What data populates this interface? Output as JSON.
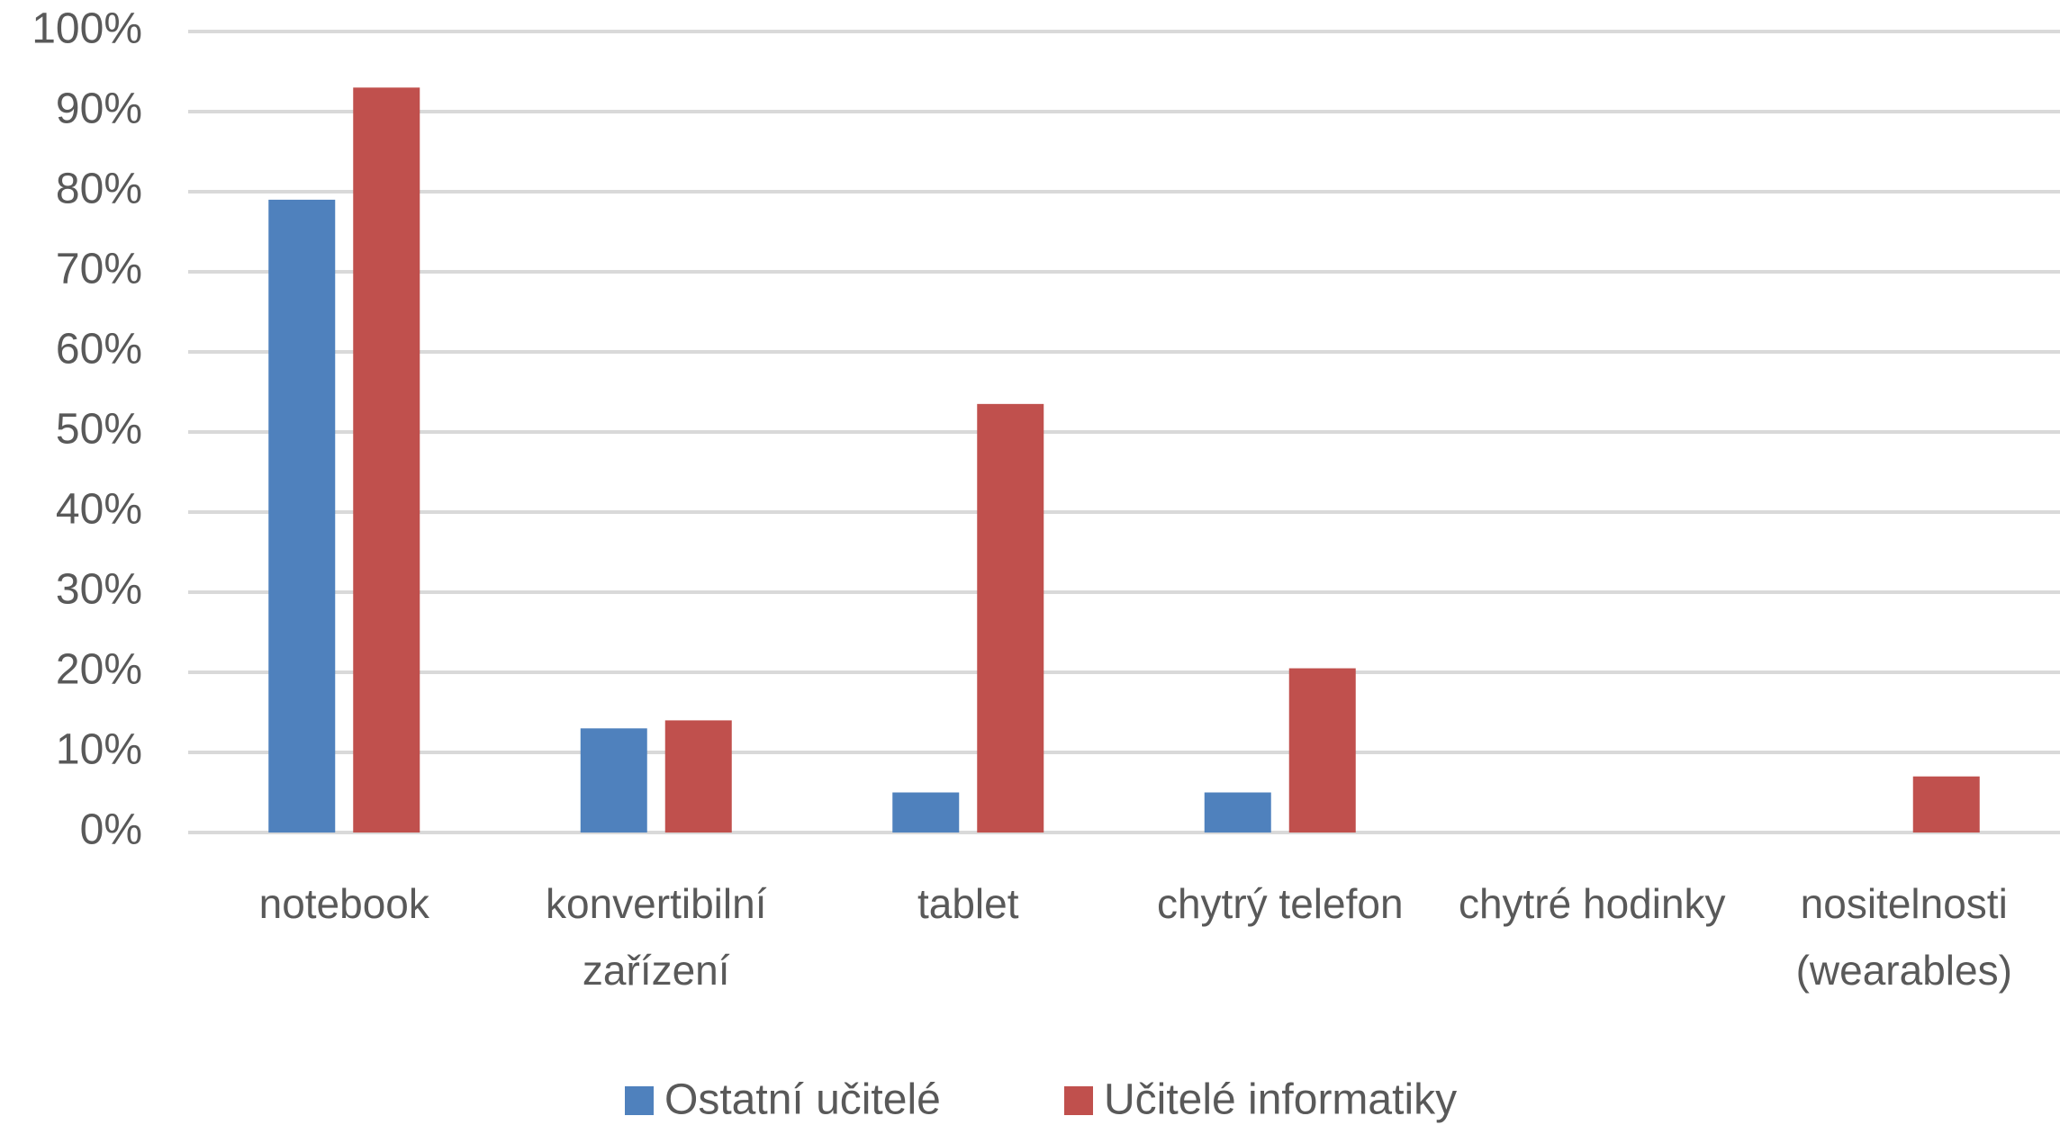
{
  "chart_data": {
    "type": "bar",
    "categories": [
      "notebook",
      "konvertibilní zařízení",
      "tablet",
      "chytrý telefon",
      "chytré hodinky",
      "nositelnosti (wearables)"
    ],
    "series": [
      {
        "name": "Ostatní učitelé",
        "color": "#4f81bd",
        "values": [
          79,
          13,
          5,
          5,
          0,
          0
        ]
      },
      {
        "name": "Učitelé informatiky",
        "color": "#c0504d",
        "values": [
          93,
          14,
          53.5,
          20.5,
          0,
          7
        ]
      }
    ],
    "ylim": [
      0,
      100
    ],
    "yticks": [
      {
        "value": 0,
        "label": "0%"
      },
      {
        "value": 10,
        "label": "10%"
      },
      {
        "value": 20,
        "label": "20%"
      },
      {
        "value": 30,
        "label": "30%"
      },
      {
        "value": 40,
        "label": "40%"
      },
      {
        "value": 50,
        "label": "50%"
      },
      {
        "value": 60,
        "label": "60%"
      },
      {
        "value": 70,
        "label": "70%"
      },
      {
        "value": 80,
        "label": "80%"
      },
      {
        "value": 90,
        "label": "90%"
      },
      {
        "value": 100,
        "label": "100%"
      }
    ],
    "grid": true,
    "legend": "bottom"
  }
}
